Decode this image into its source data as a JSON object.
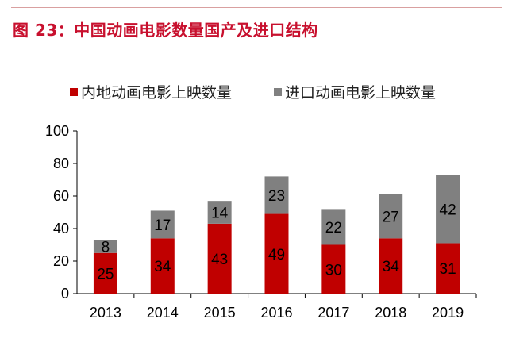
{
  "title": "图 23：中国动画电影数量国产及进口结构",
  "chart_data": {
    "type": "bar",
    "stacked": true,
    "title": "图 23：中国动画电影数量国产及进口结构",
    "categories": [
      "2013",
      "2014",
      "2015",
      "2016",
      "2017",
      "2018",
      "2019"
    ],
    "series": [
      {
        "name": "内地动画电影上映数量",
        "color": "#c00000",
        "values": [
          25,
          34,
          43,
          49,
          30,
          34,
          31
        ]
      },
      {
        "name": "进口动画电影上映数量",
        "color": "#808080",
        "values": [
          8,
          17,
          14,
          23,
          22,
          27,
          42
        ]
      }
    ],
    "ylim": [
      0,
      100
    ],
    "yticks": [
      0,
      20,
      40,
      60,
      80,
      100
    ],
    "grid": false,
    "legend": "top"
  }
}
